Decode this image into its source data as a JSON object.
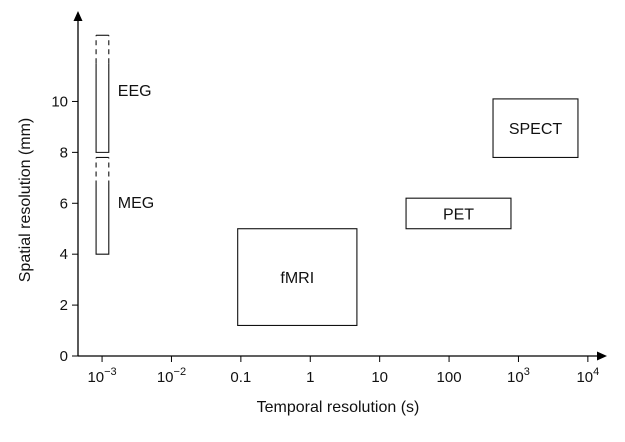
{
  "chart_data": {
    "type": "region",
    "xlabel": "Temporal resolution (s)",
    "ylabel": "Spatial resolution (mm)",
    "x_scale": "log",
    "x_ticks": [
      {
        "value": 0.001,
        "base": "10",
        "exp": "−3"
      },
      {
        "value": 0.01,
        "base": "10",
        "exp": "−2"
      },
      {
        "value": 0.1,
        "text": "0.1"
      },
      {
        "value": 1,
        "text": "1"
      },
      {
        "value": 10,
        "text": "10"
      },
      {
        "value": 100,
        "text": "100"
      },
      {
        "value": 1000,
        "base": "10",
        "exp": "3"
      },
      {
        "value": 10000,
        "base": "10",
        "exp": "4"
      }
    ],
    "y_ticks": [
      0,
      2,
      4,
      6,
      8,
      10
    ],
    "xlim": [
      0.00045,
      14000
    ],
    "ylim": [
      0,
      13.2
    ],
    "regions": [
      {
        "name": "EEG",
        "x": [
          0.00082,
          0.00125
        ],
        "y": [
          8,
          12.6
        ],
        "dashed_above": 11.5,
        "label_side": "right"
      },
      {
        "name": "MEG",
        "x": [
          0.00082,
          0.00125
        ],
        "y": [
          4,
          7.8
        ],
        "dashed_above": 6.7,
        "label_side": "right"
      },
      {
        "name": "fMRI",
        "x": [
          0.09,
          4.7
        ],
        "y": [
          1.2,
          5.0
        ],
        "label_side": "center"
      },
      {
        "name": "PET",
        "x": [
          24,
          780
        ],
        "y": [
          5.0,
          6.2
        ],
        "label_side": "center"
      },
      {
        "name": "SPECT",
        "x": [
          430,
          7200
        ],
        "y": [
          7.8,
          10.1
        ],
        "label_side": "center"
      }
    ]
  }
}
